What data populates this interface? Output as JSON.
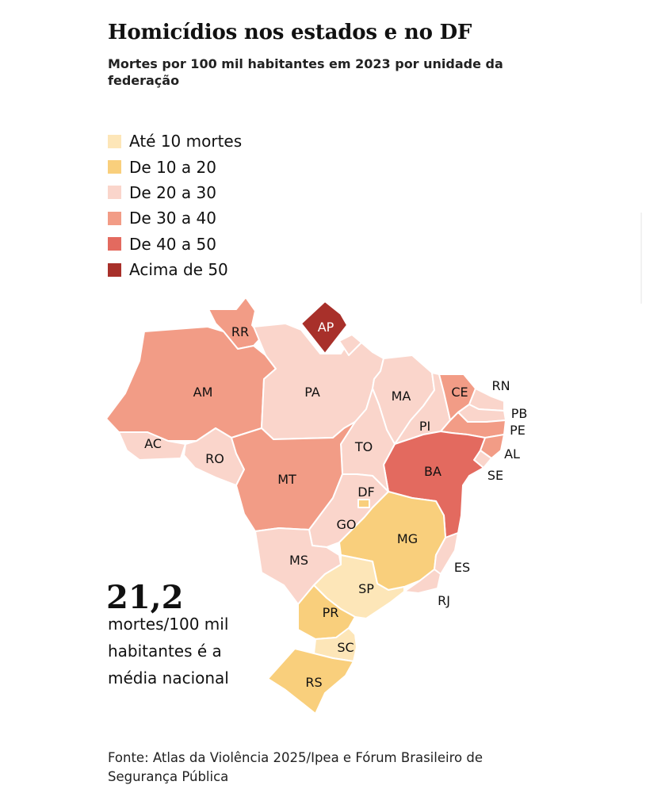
{
  "title": "Homicídios nos estados e no DF",
  "subtitle": "Mortes por 100 mil habitantes em 2023 por unidade da federação",
  "legend": [
    {
      "label": "Até 10 mortes",
      "color": "#fde6b8"
    },
    {
      "label": "De 10 a 20",
      "color": "#f9cf7c"
    },
    {
      "label": "De 20 a 30",
      "color": "#fad5cb"
    },
    {
      "label": "De 30 a 40",
      "color": "#f29c86"
    },
    {
      "label": "De 40 a 50",
      "color": "#e36a5f"
    },
    {
      "label": "Acima de 50",
      "color": "#a8302a"
    }
  ],
  "states": {
    "RR": "RR",
    "AP": "AP",
    "AM": "AM",
    "PA": "PA",
    "MA": "MA",
    "CE": "CE",
    "RN": "RN",
    "PB": "PB",
    "PE": "PE",
    "AL": "AL",
    "SE": "SE",
    "PI": "PI",
    "AC": "AC",
    "RO": "RO",
    "TO": "TO",
    "BA": "BA",
    "MT": "MT",
    "DF": "DF",
    "GO": "GO",
    "MG": "MG",
    "ES": "ES",
    "MS": "MS",
    "SP": "SP",
    "RJ": "RJ",
    "PR": "PR",
    "SC": "SC",
    "RS": "RS"
  },
  "national": {
    "value": "21,2",
    "text": "mortes/100 mil habitantes é a média nacional"
  },
  "source": "Fonte: Atlas da Violência 2025/Ipea e Fórum Brasileiro de Segurança Pública"
}
